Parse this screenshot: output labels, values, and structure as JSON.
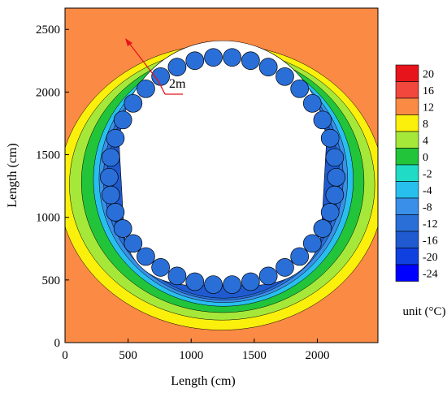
{
  "chart_data": {
    "type": "heatmap",
    "title": "",
    "xlabel": "Length (cm)",
    "ylabel": "Length (cm)",
    "xlim": [
      0,
      2480
    ],
    "ylim": [
      0,
      2670
    ],
    "x_ticks": [
      0,
      500,
      1000,
      1500,
      2000
    ],
    "y_ticks": [
      0,
      500,
      1000,
      1500,
      2000,
      2500
    ],
    "annotation": "2m",
    "colorbar": {
      "unit_label": "unit (°C)",
      "levels": [
        20,
        16,
        12,
        8,
        4,
        0,
        -2,
        -4,
        -8,
        -12,
        -16,
        -20,
        -24
      ],
      "colors": [
        "#e8141b",
        "#f2473c",
        "#fb8a44",
        "#fbf00c",
        "#a6e83a",
        "#22c43a",
        "#20dcc6",
        "#28bfef",
        "#3a8fe8",
        "#2a6fd8",
        "#1f5ad0",
        "#1040e0",
        "#0000ff"
      ]
    },
    "tunnel": {
      "opening_color": "#ffffff",
      "pipe_ring_color": "#2a6fd8",
      "pipe_count": 38
    }
  }
}
